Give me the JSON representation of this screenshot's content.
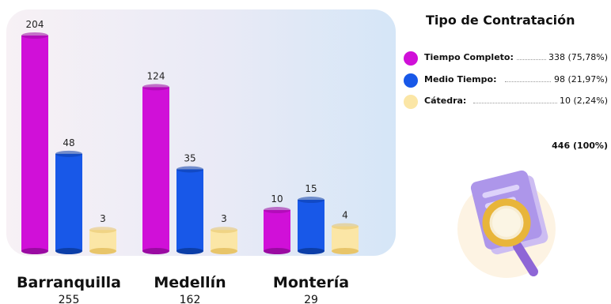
{
  "legend": {
    "title": "Tipo de Contratación",
    "items": [
      {
        "label": "Tiempo Completo:",
        "value": "338 (75,78%)",
        "color": "#d010d8"
      },
      {
        "label": "Medio Tiempo:",
        "value": "98 (21,97%)",
        "color": "#1858e8"
      },
      {
        "label": "Cátedra:",
        "value": "10 (2,24%)",
        "color": "#fbe6a6"
      }
    ],
    "total": "446 (100%)"
  },
  "chart_data": {
    "type": "bar",
    "categories": [
      "Barranquilla",
      "Medellín",
      "Montería"
    ],
    "category_totals": [
      255,
      162,
      29
    ],
    "series": [
      {
        "name": "Tiempo Completo",
        "values": [
          204,
          124,
          10
        ],
        "color": "#d010d8"
      },
      {
        "name": "Medio Tiempo",
        "values": [
          48,
          35,
          15
        ],
        "color": "#1858e8"
      },
      {
        "name": "Cátedra",
        "values": [
          3,
          3,
          4
        ],
        "color": "#fbe6a6"
      }
    ],
    "scale": "non-linear (bar heights not proportional)",
    "grid": false,
    "legend_position": "right"
  },
  "illustration": {
    "icon": "document-magnifier-icon"
  }
}
